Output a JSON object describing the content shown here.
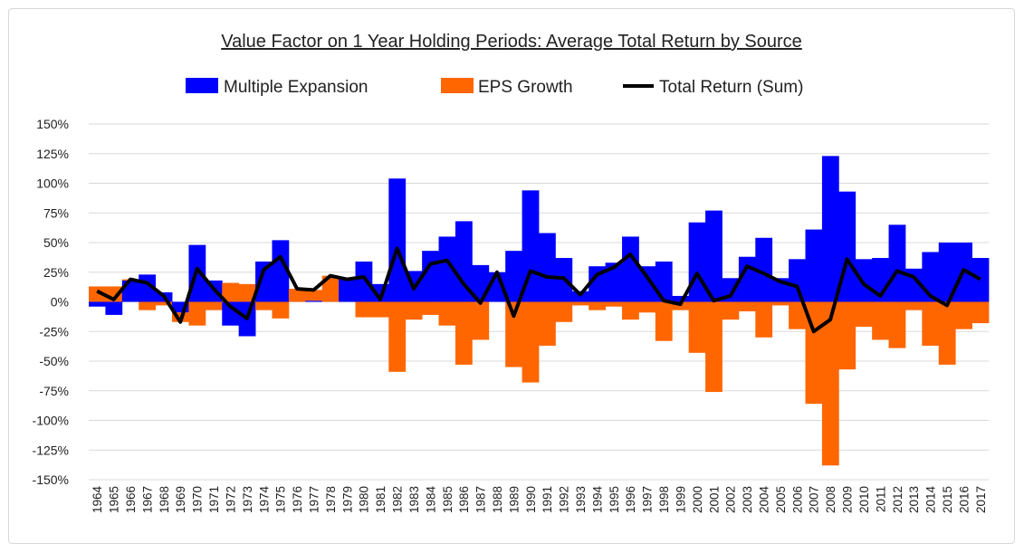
{
  "chart_data": {
    "type": "bar",
    "stacked": true,
    "title": "Value Factor on 1 Year Holding Periods: Average Total Return by Source",
    "xlabel": "",
    "ylabel": "",
    "ylim": [
      -150,
      150
    ],
    "y_ticks": [
      150,
      125,
      100,
      75,
      50,
      25,
      0,
      -25,
      -50,
      -75,
      -100,
      -125,
      -150
    ],
    "y_tick_format": "percent",
    "grid": true,
    "legend_position": "top",
    "categories": [
      "1964",
      "1965",
      "1966",
      "1967",
      "1968",
      "1969",
      "1970",
      "1971",
      "1972",
      "1973",
      "1974",
      "1975",
      "1976",
      "1977",
      "1978",
      "1979",
      "1980",
      "1981",
      "1982",
      "1983",
      "1984",
      "1985",
      "1986",
      "1987",
      "1988",
      "1989",
      "1990",
      "1991",
      "1992",
      "1993",
      "1994",
      "1995",
      "1996",
      "1997",
      "1998",
      "1999",
      "2000",
      "2001",
      "2002",
      "2003",
      "2004",
      "2005",
      "2006",
      "2007",
      "2008",
      "2009",
      "2010",
      "2011",
      "2012",
      "2013",
      "2014",
      "2015",
      "2016",
      "2017"
    ],
    "series": [
      {
        "name": "Multiple Expansion",
        "type": "bar",
        "color": "#0000FF",
        "values": [
          -4,
          -11,
          18,
          23,
          8,
          -9,
          48,
          18,
          -20,
          -29,
          34,
          52,
          0,
          1,
          0,
          19,
          34,
          15,
          104,
          26,
          43,
          55,
          68,
          31,
          25,
          43,
          94,
          58,
          37,
          9,
          30,
          33,
          55,
          30,
          34,
          5,
          67,
          77,
          20,
          38,
          54,
          20,
          36,
          61,
          123,
          93,
          36,
          37,
          65,
          28,
          42,
          50,
          50,
          37
        ]
      },
      {
        "name": "EPS Growth",
        "type": "bar",
        "color": "#FF6600",
        "values": [
          13,
          13,
          1,
          -7,
          -3,
          -8,
          -20,
          -7,
          16,
          15,
          -7,
          -14,
          11,
          9,
          22,
          0,
          -13,
          -13,
          -59,
          -15,
          -11,
          -20,
          -53,
          -32,
          0,
          -55,
          -68,
          -37,
          -17,
          -3,
          -7,
          -4,
          -15,
          -9,
          -33,
          -7,
          -43,
          -76,
          -15,
          -8,
          -30,
          -3,
          -23,
          -86,
          -138,
          -57,
          -21,
          -32,
          -39,
          -7,
          -37,
          -53,
          -23,
          -18
        ]
      },
      {
        "name": "Total Return (Sum)",
        "type": "line",
        "color": "#000000",
        "values": [
          9,
          2,
          19,
          16,
          5,
          -17,
          28,
          11,
          -4,
          -14,
          27,
          38,
          11,
          10,
          22,
          19,
          21,
          2,
          45,
          11,
          32,
          35,
          15,
          -1,
          25,
          -12,
          26,
          21,
          20,
          6,
          23,
          29,
          40,
          21,
          1,
          -2,
          24,
          1,
          5,
          30,
          24,
          17,
          13,
          -25,
          -15,
          36,
          15,
          5,
          26,
          21,
          5,
          -3,
          27,
          19
        ]
      }
    ]
  }
}
